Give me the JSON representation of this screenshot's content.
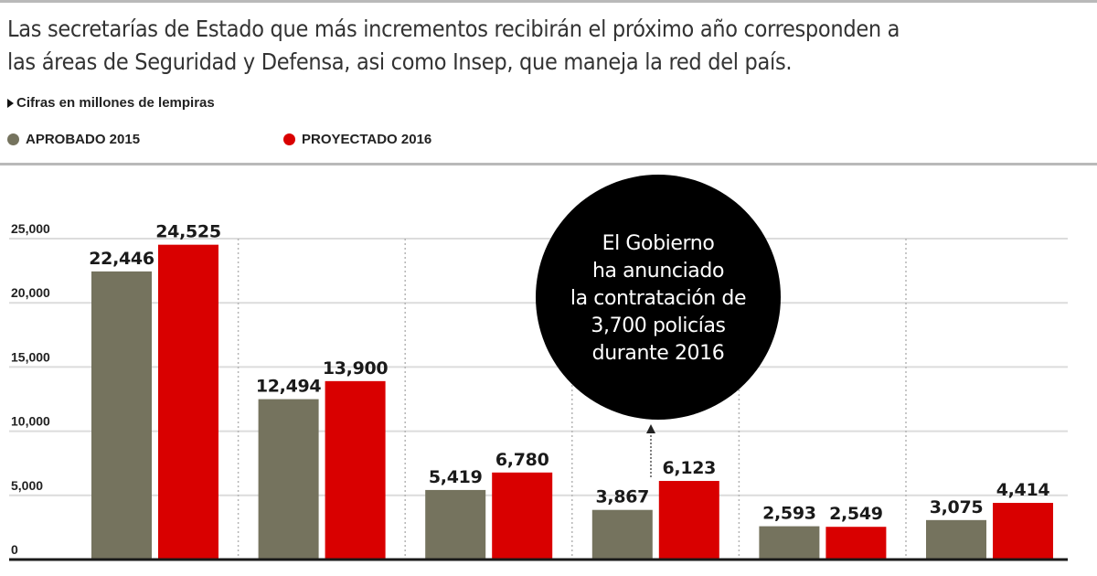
{
  "header": {
    "headline": "Las secretarías de Estado que más incrementos recibirán el próximo año corresponden a las áreas de Seguridad y Defensa, asi como Insep, que maneja la red del país.",
    "headline_lines": [
      "Las secretarías de Estado que más incrementos recibirán el próximo año corresponden a",
      "las áreas de Seguridad y Defensa, asi como Insep, que maneja la red del país."
    ],
    "note": "Cifras en millones de lempiras",
    "note_icon": "triangle-right-icon"
  },
  "legend": [
    {
      "label": "APROBADO 2015",
      "color": "#75735e"
    },
    {
      "label": "PROYECTADO 2016",
      "color": "#d90000"
    }
  ],
  "callout": {
    "lines": [
      "El Gobierno",
      "ha anunciado",
      "la contratación de",
      "3,700 policías",
      "durante 2016"
    ],
    "background": "#000000"
  },
  "chart_data": {
    "type": "bar",
    "title": "",
    "xlabel": "",
    "ylabel": "Cifras en millones de lempiras",
    "ylim": [
      0,
      25000
    ],
    "yticks": [
      0,
      5000,
      10000,
      15000,
      20000,
      25000
    ],
    "ytick_labels": [
      "0",
      "5,000",
      "10,000",
      "15,000",
      "20,000",
      "25,000"
    ],
    "grid": true,
    "legend_position": "top-left",
    "categories": [
      "",
      "",
      "",
      "",
      "",
      ""
    ],
    "series": [
      {
        "name": "APROBADO 2015",
        "color": "#75735e",
        "values": [
          22446,
          12494,
          5419,
          3867,
          2593,
          3075
        ],
        "labels": [
          "22,446",
          "12,494",
          "5,419",
          "3,867",
          "2,593",
          "3,075"
        ]
      },
      {
        "name": "PROYECTADO 2016",
        "color": "#d90000",
        "values": [
          24525,
          13900,
          6780,
          6123,
          2549,
          4414
        ],
        "labels": [
          "24,525",
          "13,900",
          "6,780",
          "6,123",
          "2,549",
          "4,414"
        ]
      }
    ],
    "annotation": "El Gobierno ha anunciado la contratación de 3,700 policías durante 2016"
  }
}
